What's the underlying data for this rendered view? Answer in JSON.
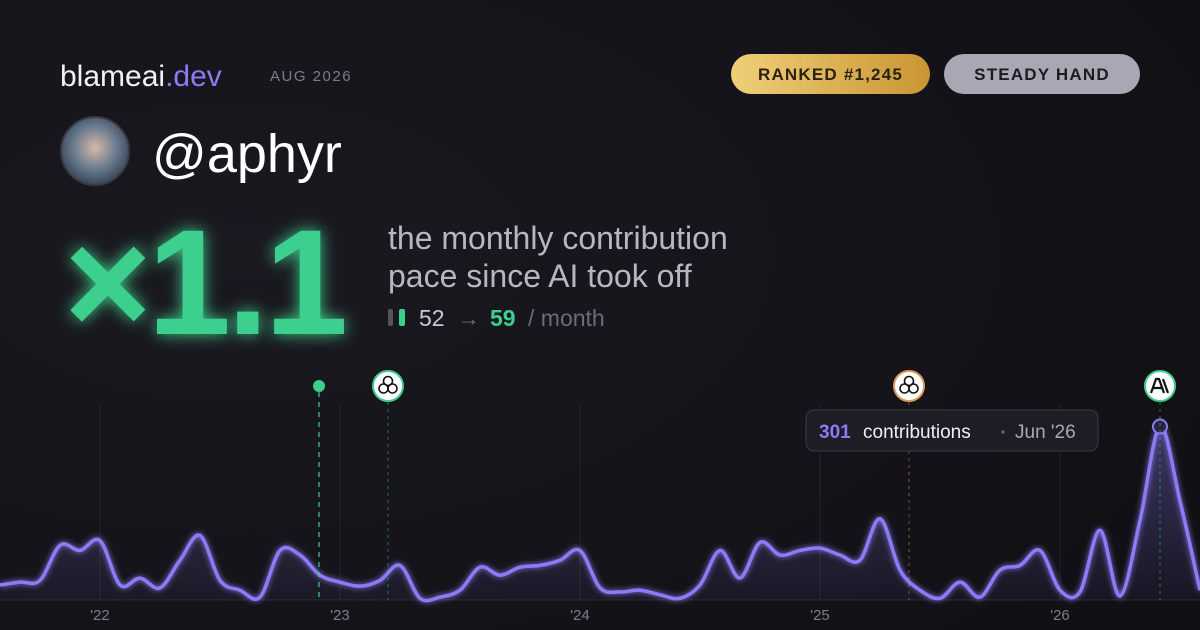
{
  "header": {
    "brand": "blameai",
    "brand_tld": ".dev",
    "date": "AUG 2026",
    "rank_badge": "RANKED #1,245",
    "tag_badge": "STEADY HAND"
  },
  "user": {
    "handle": "@aphyr"
  },
  "headline": {
    "multiplier": "×1.1",
    "caption_line1": "the monthly contribution",
    "caption_line2": "pace since AI took off",
    "before": 52,
    "arrow": "→",
    "after": 59,
    "unit": "/ month"
  },
  "chart_data": {
    "type": "line",
    "color": "#8b7cf6",
    "categories": [
      null,
      null,
      null,
      null,
      null,
      "'22",
      null,
      null,
      null,
      null,
      null,
      null,
      null,
      null,
      null,
      null,
      null,
      "'23",
      null,
      null,
      null,
      null,
      null,
      null,
      null,
      null,
      null,
      null,
      null,
      "'24",
      null,
      null,
      null,
      null,
      null,
      null,
      null,
      null,
      null,
      null,
      null,
      "'25",
      null,
      null,
      null,
      null,
      null,
      null,
      null,
      null,
      null,
      null,
      null,
      "'26",
      null,
      null,
      null,
      null,
      null,
      null,
      null
    ],
    "values": [
      26,
      31,
      34,
      95,
      86,
      103,
      26,
      38,
      21,
      69,
      112,
      34,
      17,
      5,
      86,
      78,
      43,
      31,
      24,
      34,
      60,
      3,
      5,
      17,
      57,
      43,
      57,
      60,
      69,
      86,
      21,
      14,
      17,
      9,
      3,
      26,
      86,
      38,
      100,
      78,
      86,
      90,
      78,
      69,
      141,
      52,
      17,
      3,
      31,
      5,
      52,
      60,
      86,
      17,
      14,
      121,
      7,
      138,
      301,
      172,
      17
    ],
    "ylim": [
      0,
      340
    ],
    "tooltip": {
      "label": "contributions",
      "date": "Jun '26"
    }
  }
}
